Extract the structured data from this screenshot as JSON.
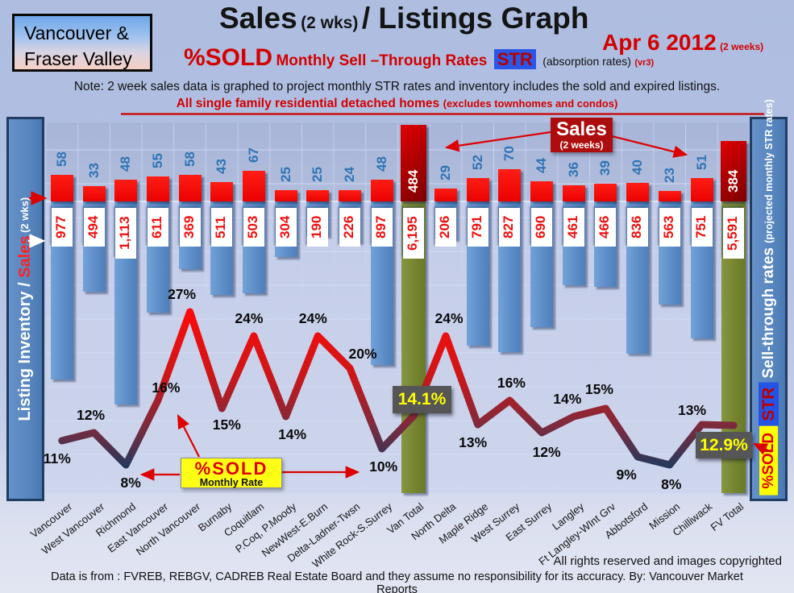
{
  "header": {
    "region_line1": "Vancouver &",
    "region_line2": "Fraser Valley",
    "title_sales": "Sales",
    "title_wks": "(2 wks)",
    "title_rest": "/ Listings Graph",
    "date": "Apr 6 2012",
    "date_note": "(2 weeks)",
    "pct_sold": "%SOLD",
    "str_phrase": "Monthly Sell –Through Rates",
    "str_badge": "STR",
    "absorption": "(absorption rates)",
    "version": "(vr3)",
    "note": "Note: 2 week sales data is graphed to project monthly STR rates and inventory includes the sold and expired listings.",
    "scope": "All single family residential detached homes",
    "scope_note": "(excludes townhomes and condos)"
  },
  "left_axis": {
    "label_inventory": "Listing Inventory / ",
    "label_sales": "Sales",
    "label_wks": " (2 wks)"
  },
  "right_axis": {
    "badge_sold": "%SOLD",
    "badge_str": "STR",
    "label_main": " Sell-through rates ",
    "label_sub": " (projected monthly STR rates)"
  },
  "annotations": {
    "sales_callout_title": "Sales",
    "sales_callout_sub": "(2 weeks)",
    "sold_callout_title": "%SOLD",
    "sold_callout_sub": "Monthly Rate",
    "van_total_rate": "14.1%",
    "fv_total_rate": "12.9%"
  },
  "chart_data": {
    "type": "combo bar+line",
    "categories": [
      "Vancouver",
      "West Vancouver",
      "Richmond",
      "East Vancouver",
      "North Vancouver",
      "Burnaby",
      "Coquitlam",
      "P.Coq, P.Moody",
      "NewWest-E.Burn",
      "Delta-Ladner-Twsn",
      "White Rock-S.Surrey",
      "Van Total",
      "North Delta",
      "Maple Ridge",
      "West Surrey",
      "East Surrey",
      "Langley",
      "Ft Langley-WInt Grv",
      "Abbotsford",
      "Mission",
      "Chilliwack",
      "FV Total"
    ],
    "series": [
      {
        "name": "Sales (2 weeks)",
        "type": "bar",
        "values": [
          58,
          33,
          48,
          55,
          58,
          43,
          67,
          25,
          25,
          24,
          48,
          484,
          29,
          52,
          70,
          44,
          36,
          39,
          40,
          23,
          51,
          384
        ]
      },
      {
        "name": "Listing Inventory (includes sold and expired)",
        "type": "bar-downward",
        "values": [
          977,
          494,
          1113,
          611,
          369,
          511,
          503,
          304,
          190,
          226,
          897,
          6195,
          206,
          791,
          827,
          690,
          461,
          466,
          836,
          563,
          751,
          5591
        ]
      },
      {
        "name": "%SOLD Monthly Sell-Through Rate",
        "type": "line",
        "values": [
          11,
          12,
          8,
          16,
          27,
          15,
          24,
          14,
          24,
          20,
          10,
          14.1,
          24,
          13,
          16,
          12,
          14,
          15,
          9,
          8,
          13,
          12.9
        ],
        "labels": [
          "11%",
          "12%",
          "8%",
          "16%",
          "27%",
          "15%",
          "24%",
          "14%",
          "24%",
          "20%",
          "10%",
          "14.1%",
          "24%",
          "13%",
          "16%",
          "12%",
          "14%",
          "15%",
          "9%",
          "8%",
          "13%",
          "12.9%"
        ]
      }
    ],
    "totals_indices": [
      11,
      21
    ],
    "left_axis_label": "Listing Inventory / Sales (2 wks)",
    "right_axis_label": "Sell-through rates (projected monthly STR rates)",
    "grid": true,
    "legend_position": "none",
    "x_label_rotation": -38
  },
  "colors": {
    "accent_red": "#d40000",
    "sales_bar": "#ea0202",
    "total_sales_bar": "#9e0000",
    "inventory_bar": "#5b8cc6",
    "total_inventory_bar": "#74832f",
    "sales_number": "#2e74b5",
    "inventory_number": "#ee0e0e",
    "rate_box_bg": "#565656",
    "rate_box_text": "#ffff00",
    "panel_blue": "#5584bd"
  },
  "footer": {
    "rights": "All rights reserved and  images copyrighted",
    "source": "Data is from : FVREB, REBGV, CADREB Real Estate Board and they assume no responsibility for its accuracy. By: Vancouver Market Reports"
  }
}
